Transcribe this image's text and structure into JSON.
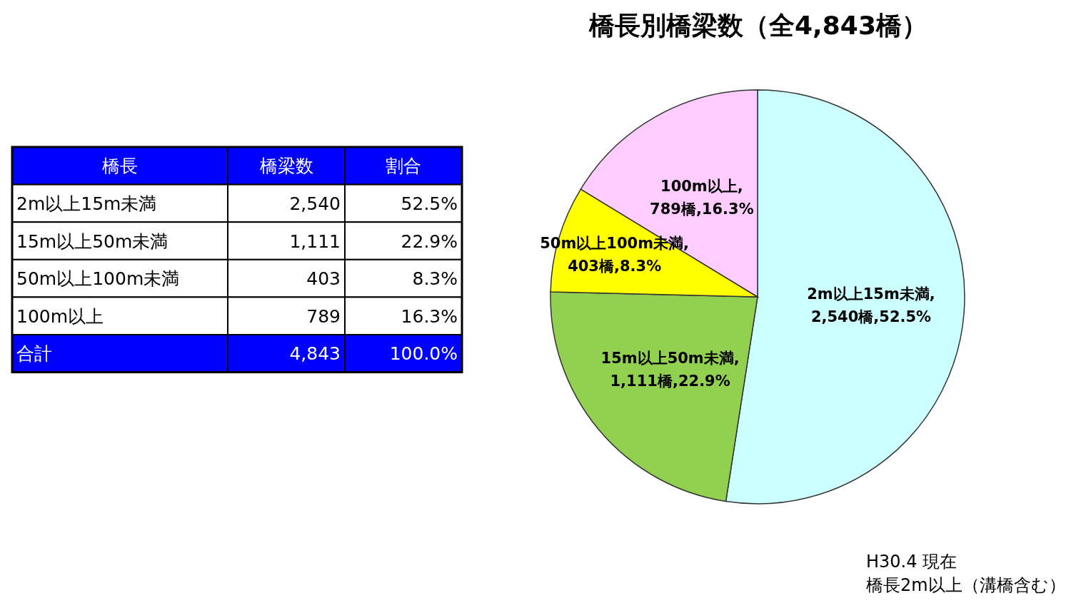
{
  "chart_data": {
    "type": "pie",
    "title": "橋長別橋梁数（全4,843橋）",
    "categories": [
      "2m以上15m未満",
      "15m以上50m未満",
      "50m以上100m未満",
      "100m以上"
    ],
    "values": [
      2540,
      1111,
      403,
      789
    ],
    "colors": [
      "#ccffff",
      "#92d050",
      "#ffff00",
      "#ffccff"
    ],
    "value_labels": [
      ",\n2,540橋,52.5%",
      ",\n1,111橋,22.9%",
      ",\n403橋,8.3%",
      ",\n789橋,16.3%"
    ],
    "annotations": [
      "橋長",
      "橋梁数",
      "割合",
      "2,540",
      "52.5%",
      "1,111",
      "22.9%",
      "403",
      "8.3%",
      "789",
      "16.3%",
      "合計",
      "4,843",
      "100.0%",
      "H30.4 現在",
      "橋長2m以上（溝橋含む）"
    ]
  }
}
